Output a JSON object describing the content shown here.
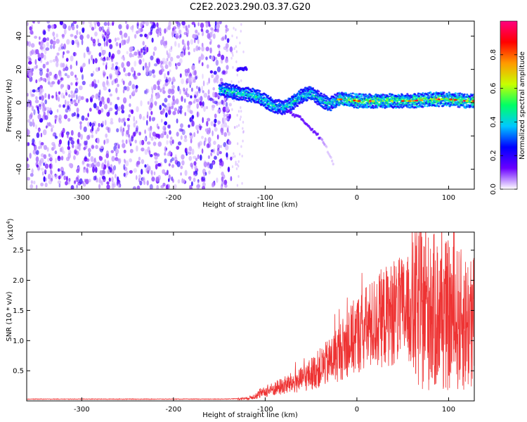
{
  "figure_title": "C2E2.2023.290.03.37.G20",
  "chart_data": [
    {
      "type": "heatmap",
      "title": "C2E2.2023.290.03.37.G20",
      "xlabel": "Height of straight line (km)",
      "ylabel": "Frequency (Hz)",
      "xlim": [
        -360,
        128
      ],
      "ylim": [
        -52,
        49
      ],
      "x_ticks": [
        -300,
        -200,
        -100,
        0,
        100
      ],
      "x_tick_labels": [
        "-300",
        "-200",
        "-100",
        "0",
        "100"
      ],
      "y_ticks": [
        -40,
        -20,
        0,
        20,
        40
      ],
      "y_tick_labels": [
        "-40",
        "-20",
        "0",
        "20",
        "40"
      ],
      "noise_region_x": [
        -360,
        -137
      ],
      "signal_trace": {
        "x": [
          -150,
          -140,
          -130,
          -120,
          -110,
          -100,
          -90,
          -80,
          -70,
          -60,
          -50,
          -40,
          -30,
          -20,
          -10,
          0,
          20,
          40,
          60,
          80,
          100,
          120,
          128
        ],
        "freq": [
          8,
          7,
          6,
          5,
          4,
          1,
          -2,
          -3,
          0,
          4,
          6,
          2,
          -1,
          2,
          2,
          1,
          1,
          1,
          1,
          2,
          2,
          1,
          1
        ]
      },
      "upper_branch": {
        "x": [
          -130,
          -125,
          -120
        ],
        "freq": [
          20,
          21,
          20
        ]
      },
      "falling_tail": {
        "x": [
          -75,
          -60,
          -45,
          -35,
          -25
        ],
        "freq": [
          -5,
          -10,
          -18,
          -25,
          -37
        ]
      },
      "colorbar": {
        "label": "Normalized spectral amplitude",
        "range": [
          0,
          1
        ],
        "ticks": [
          0.0,
          0.2,
          0.4,
          0.6,
          0.8
        ],
        "tick_labels": [
          "0.0",
          "0.2",
          "0.4",
          "0.6",
          "0.8"
        ],
        "colors": [
          "#ffffff",
          "#6a00ff",
          "#0000ff",
          "#00c8ff",
          "#00ff66",
          "#c8ff00",
          "#ff9900",
          "#ff0000",
          "#ff0080"
        ]
      }
    },
    {
      "type": "line",
      "title": "",
      "xlabel": "Height of straight line (km)",
      "ylabel": "SNR (10 * v/v)",
      "y_multiplier": "(x10",
      "y_multiplier_exp": "4",
      "y_multiplier_close": ")",
      "xlim": [
        -360,
        128
      ],
      "ylim": [
        0,
        2.8
      ],
      "x_ticks": [
        -300,
        -200,
        -100,
        0,
        100
      ],
      "x_tick_labels": [
        "-300",
        "-200",
        "-100",
        "0",
        "100"
      ],
      "y_ticks": [
        0.5,
        1.0,
        1.5,
        2.0,
        2.5
      ],
      "y_tick_labels": [
        "0.5",
        "1.0",
        "1.5",
        "2.0",
        "2.5"
      ],
      "color": "#ee3333",
      "series": [
        {
          "name": "SNR",
          "x": [
            -360,
            -300,
            -200,
            -150,
            -120,
            -110,
            -100,
            -90,
            -80,
            -70,
            -60,
            -50,
            -40,
            -30,
            -20,
            -10,
            0,
            10,
            20,
            30,
            40,
            50,
            60,
            70,
            80,
            90,
            100,
            110,
            120,
            128
          ],
          "values": [
            0.03,
            0.03,
            0.03,
            0.03,
            0.04,
            0.08,
            0.15,
            0.2,
            0.25,
            0.3,
            0.35,
            0.45,
            0.55,
            0.65,
            0.8,
            0.95,
            1.1,
            1.2,
            1.3,
            1.4,
            1.45,
            1.5,
            1.5,
            1.5,
            1.48,
            1.45,
            1.4,
            1.35,
            1.3,
            1.3
          ]
        }
      ]
    }
  ]
}
